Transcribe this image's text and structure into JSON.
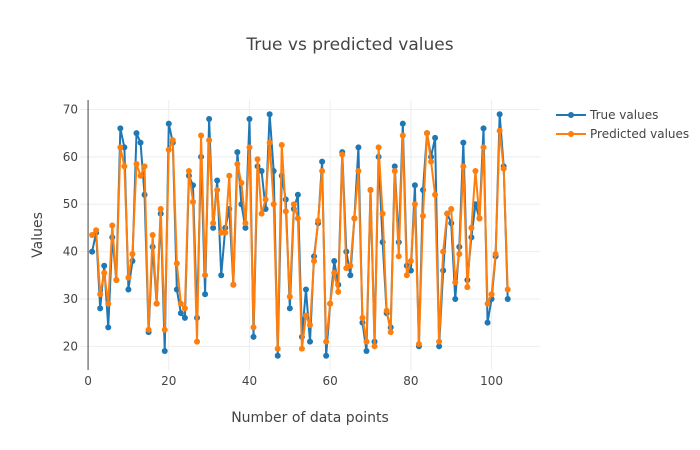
{
  "chart_data": {
    "type": "line",
    "title": "True vs predicted values",
    "xlabel": "Number of data points",
    "ylabel": "Values",
    "xlim": [
      -2,
      112
    ],
    "ylim": [
      15,
      72
    ],
    "xticks": [
      0,
      20,
      40,
      60,
      80,
      100
    ],
    "yticks": [
      20,
      30,
      40,
      50,
      60,
      70
    ],
    "grid": true,
    "legend_position": "top-right",
    "x": [
      1,
      2,
      3,
      4,
      5,
      6,
      7,
      8,
      9,
      10,
      11,
      12,
      13,
      14,
      15,
      16,
      17,
      18,
      19,
      20,
      21,
      22,
      23,
      24,
      25,
      26,
      27,
      28,
      29,
      30,
      31,
      32,
      33,
      34,
      35,
      36,
      37,
      38,
      39,
      40,
      41,
      42,
      43,
      44,
      45,
      46,
      47,
      48,
      49,
      50,
      51,
      52,
      53,
      54,
      55,
      56,
      57,
      58,
      59,
      60,
      61,
      62,
      63,
      64,
      65,
      66,
      67,
      68,
      69,
      70,
      71,
      72,
      73,
      74,
      75,
      76,
      77,
      78,
      79,
      80,
      81,
      82,
      83,
      84,
      85,
      86,
      87,
      88,
      89,
      90,
      91,
      92,
      93,
      94,
      95,
      96,
      97,
      98,
      99,
      100,
      101,
      102,
      103,
      104
    ],
    "series": [
      {
        "name": "True values",
        "color": "#1f77b4",
        "values": [
          40,
          44,
          28,
          37,
          24,
          43,
          34,
          66,
          62,
          32,
          38,
          65,
          63,
          52,
          23,
          41,
          29,
          48,
          19,
          67,
          63,
          32,
          27,
          26,
          56,
          54,
          26,
          60,
          31,
          68,
          45,
          55,
          35,
          45,
          49,
          33,
          61,
          50,
          45,
          68,
          22,
          58,
          57,
          49,
          69,
          57,
          18,
          56,
          51,
          28,
          49,
          52,
          22,
          32,
          21,
          39,
          46,
          59,
          18,
          29,
          38,
          33,
          61,
          40,
          35,
          47,
          62,
          25,
          19,
          53,
          21,
          60,
          42,
          27,
          24,
          58,
          42,
          67,
          37,
          36,
          54,
          20,
          53,
          65,
          60,
          64,
          20,
          36,
          48,
          46,
          30,
          41,
          63,
          34,
          43,
          50,
          47,
          66,
          25,
          30,
          39,
          69,
          58,
          30
        ]
      },
      {
        "name": "Predicted values",
        "color": "#ff7f0e",
        "values": [
          43.5,
          44.5,
          31,
          35.5,
          29,
          45.5,
          34,
          62,
          58,
          34.5,
          39.5,
          58.5,
          56,
          58,
          23.5,
          43.5,
          29,
          49,
          23.5,
          61.5,
          63.5,
          37.5,
          29,
          28,
          57,
          50.5,
          21,
          64.5,
          35,
          63.5,
          46,
          53,
          44,
          44,
          56,
          33,
          58.5,
          54.5,
          46,
          62,
          24,
          59.5,
          48,
          51,
          63,
          50,
          19.5,
          62.5,
          48.5,
          30.5,
          50,
          47,
          19.5,
          26.5,
          24.5,
          38,
          46.5,
          57,
          21,
          29,
          35.5,
          31.5,
          60.5,
          36.5,
          37,
          47,
          57,
          26,
          21,
          53,
          20,
          62,
          48,
          27.5,
          23,
          57,
          39,
          64.5,
          35,
          38,
          50,
          20.5,
          47.5,
          65,
          59,
          52,
          21,
          40,
          48,
          49,
          33.5,
          39.5,
          58,
          32.5,
          45,
          57,
          47,
          62,
          29,
          31,
          39.5,
          65.5,
          57.5,
          32
        ]
      }
    ]
  }
}
